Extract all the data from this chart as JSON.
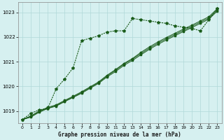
{
  "plot_bg_color": "#d6f0f0",
  "grid_color": "#b0d8d8",
  "line_color": "#1a5c1a",
  "title": "Graphe pression niveau de la mer (hPa)",
  "xlim": [
    -0.5,
    23.5
  ],
  "ylim": [
    1018.5,
    1023.4
  ],
  "yticks": [
    1019,
    1020,
    1021,
    1022,
    1023
  ],
  "xticks": [
    0,
    1,
    2,
    3,
    4,
    5,
    6,
    7,
    8,
    9,
    10,
    11,
    12,
    13,
    14,
    15,
    16,
    17,
    18,
    19,
    20,
    21,
    22,
    23
  ],
  "hours": [
    0,
    1,
    2,
    3,
    4,
    5,
    6,
    7,
    8,
    9,
    10,
    11,
    12,
    13,
    14,
    15,
    16,
    17,
    18,
    19,
    20,
    21,
    22,
    23
  ],
  "line_bundle1": [
    1018.65,
    1018.75,
    1018.95,
    1019.1,
    1019.2,
    1019.38,
    1019.55,
    1019.72,
    1019.92,
    1020.12,
    1020.38,
    1020.6,
    1020.85,
    1021.05,
    1021.28,
    1021.5,
    1021.7,
    1021.88,
    1022.05,
    1022.22,
    1022.38,
    1022.55,
    1022.72,
    1023.05
  ],
  "line_bundle2": [
    1018.65,
    1018.78,
    1018.98,
    1019.12,
    1019.22,
    1019.4,
    1019.57,
    1019.75,
    1019.95,
    1020.15,
    1020.42,
    1020.65,
    1020.9,
    1021.1,
    1021.33,
    1021.55,
    1021.75,
    1021.93,
    1022.1,
    1022.27,
    1022.43,
    1022.6,
    1022.77,
    1023.1
  ],
  "line_bundle3": [
    1018.65,
    1018.8,
    1019.0,
    1019.15,
    1019.25,
    1019.43,
    1019.6,
    1019.78,
    1019.98,
    1020.18,
    1020.45,
    1020.68,
    1020.93,
    1021.13,
    1021.38,
    1021.6,
    1021.8,
    1021.98,
    1022.15,
    1022.32,
    1022.48,
    1022.65,
    1022.82,
    1023.15
  ],
  "line_top": [
    1018.65,
    1018.9,
    1019.05,
    1019.1,
    1019.9,
    1020.3,
    1020.75,
    1021.85,
    1021.95,
    1022.05,
    1022.2,
    1022.25,
    1022.25,
    1022.75,
    1022.7,
    1022.65,
    1022.6,
    1022.55,
    1022.45,
    1022.4,
    1022.35,
    1022.25,
    1022.7,
    1023.15
  ]
}
